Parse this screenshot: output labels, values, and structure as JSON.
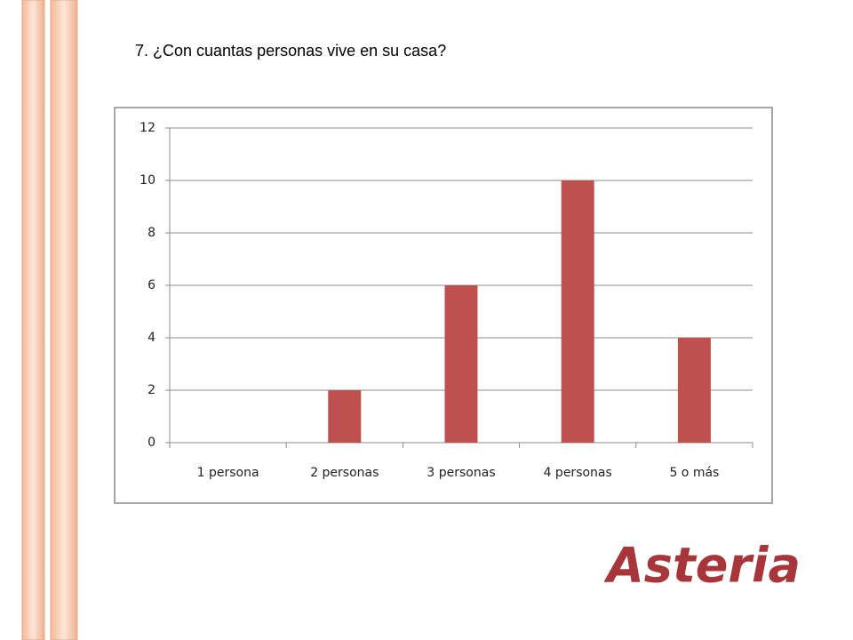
{
  "chart_data": {
    "type": "bar",
    "title": "7.  ¿Con cuantas personas vive en su casa?",
    "categories": [
      "1 persona",
      "2 personas",
      "3 personas",
      "4 personas",
      "5 o más"
    ],
    "values": [
      0,
      2,
      6,
      10,
      4
    ],
    "color": "#c0504d",
    "ylim": [
      0,
      12
    ],
    "yticks": [
      0,
      2,
      4,
      6,
      8,
      10,
      12
    ],
    "grid": true
  },
  "slide": {
    "logo": "Asteria"
  }
}
